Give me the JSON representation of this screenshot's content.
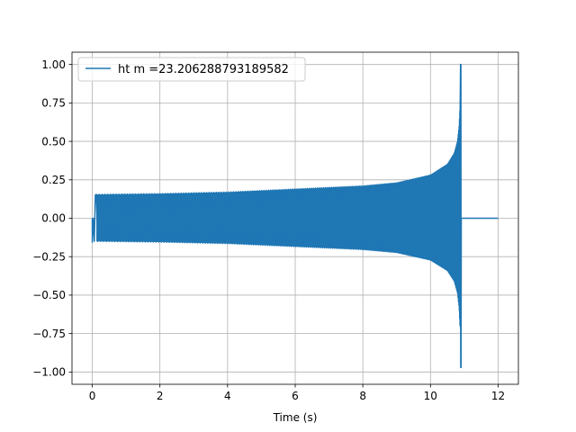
{
  "chart_data": {
    "type": "line",
    "title": "",
    "xlabel": "Time (s)",
    "ylabel": "",
    "xlim": [
      -0.6,
      12.6
    ],
    "ylim": [
      -1.08,
      1.08
    ],
    "xticks": [
      0,
      2,
      4,
      6,
      8,
      10,
      12
    ],
    "xtick_labels": [
      "0",
      "2",
      "4",
      "6",
      "8",
      "10",
      "12"
    ],
    "yticks": [
      -1.0,
      -0.75,
      -0.5,
      -0.25,
      0.0,
      0.25,
      0.5,
      0.75,
      1.0
    ],
    "ytick_labels": [
      "−1.00",
      "−0.75",
      "−0.50",
      "−0.25",
      "0.00",
      "0.25",
      "0.50",
      "0.75",
      "1.00"
    ],
    "grid": true,
    "legend_position": "top-left",
    "series": [
      {
        "name": "ht m =23.206288793189582",
        "color": "#1f77b4",
        "waveform": "chirp",
        "t_start": 0.0,
        "t_merger": 10.9,
        "t_end": 12.0,
        "envelope": {
          "t": [
            0.0,
            0.1,
            2.0,
            4.0,
            6.0,
            8.0,
            9.0,
            10.0,
            10.5,
            10.7,
            10.8,
            10.85,
            10.88,
            10.9
          ],
          "amplitude": [
            0.15,
            0.155,
            0.16,
            0.17,
            0.19,
            0.21,
            0.23,
            0.28,
            0.35,
            0.42,
            0.5,
            0.6,
            0.75,
            1.0
          ]
        },
        "min_value": -0.97,
        "max_value": 1.0
      }
    ]
  }
}
